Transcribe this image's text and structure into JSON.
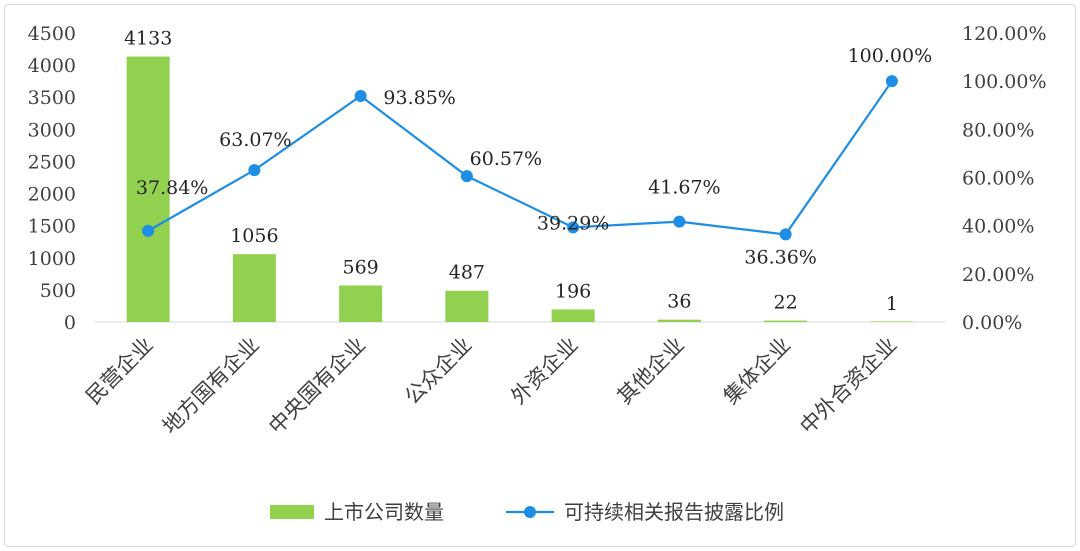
{
  "chart_data": {
    "type": "bar",
    "categories": [
      "民营企业",
      "地方国有企业",
      "中央国有企业",
      "公众企业",
      "外资企业",
      "其他企业",
      "集体企业",
      "中外合资企业"
    ],
    "series": [
      {
        "name": "上市公司数量",
        "type": "bar",
        "axis": "left",
        "color": "#92d050",
        "values": [
          4133,
          1056,
          569,
          487,
          196,
          36,
          22,
          1
        ],
        "labels": [
          "4133",
          "1056",
          "569",
          "487",
          "196",
          "36",
          "22",
          "1"
        ]
      },
      {
        "name": "可持续相关报告披露比例",
        "type": "line",
        "axis": "right",
        "color": "#1d8ee3",
        "values": [
          37.84,
          63.07,
          93.85,
          60.57,
          39.29,
          41.67,
          36.36,
          100.0
        ],
        "labels": [
          "37.84%",
          "63.07%",
          "93.85%",
          "60.57%",
          "39.29%",
          "41.67%",
          "36.36%",
          "100.00%"
        ]
      }
    ],
    "y_left": {
      "min": 0,
      "max": 4500,
      "ticks": [
        "0",
        "500",
        "1000",
        "1500",
        "2000",
        "2500",
        "3000",
        "3500",
        "4000",
        "4500"
      ]
    },
    "y_right": {
      "min": 0,
      "max": 120,
      "ticks": [
        "0.00%",
        "20.00%",
        "40.00%",
        "60.00%",
        "80.00%",
        "100.00%",
        "120.00%"
      ]
    },
    "grid": false,
    "legend_position": "bottom"
  }
}
